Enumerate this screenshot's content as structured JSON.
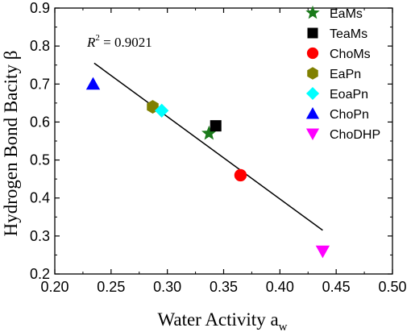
{
  "chart_data": {
    "type": "scatter",
    "xlabel": "Water Activity a",
    "xlabel_sub": "w",
    "ylabel": "Hydrogen Bond Bacity β",
    "xlim": [
      0.2,
      0.5
    ],
    "ylim": [
      0.2,
      0.9
    ],
    "xticks": [
      "0.20",
      "0.25",
      "0.30",
      "0.35",
      "0.40",
      "0.45",
      "0.50"
    ],
    "yticks": [
      "0.2",
      "0.3",
      "0.4",
      "0.5",
      "0.6",
      "0.7",
      "0.8",
      "0.9"
    ],
    "legend_position": "right",
    "series": [
      {
        "name": "EaMs",
        "marker": "star",
        "color": "#1a7a1a",
        "x": 0.337,
        "y": 0.57
      },
      {
        "name": "TeaMs",
        "marker": "square",
        "color": "#000000",
        "x": 0.343,
        "y": 0.59
      },
      {
        "name": "ChoMs",
        "marker": "circle",
        "color": "#ff0000",
        "x": 0.365,
        "y": 0.46
      },
      {
        "name": "EaPn",
        "marker": "hexagon",
        "color": "#808000",
        "x": 0.287,
        "y": 0.64
      },
      {
        "name": "EoaPn",
        "marker": "diamond",
        "color": "#00ffff",
        "x": 0.295,
        "y": 0.63
      },
      {
        "name": "ChoPn",
        "marker": "triangle-up",
        "color": "#0000ff",
        "x": 0.234,
        "y": 0.7
      },
      {
        "name": "ChoDHP",
        "marker": "triangle-down",
        "color": "#ff00ff",
        "x": 0.438,
        "y": 0.26
      }
    ],
    "fit_line": {
      "x": [
        0.235,
        0.438
      ],
      "y": [
        0.755,
        0.315
      ]
    },
    "annotation": {
      "r2_italic": "R",
      "r2_sup": "2",
      "r2_text": " = 0.9021"
    }
  }
}
